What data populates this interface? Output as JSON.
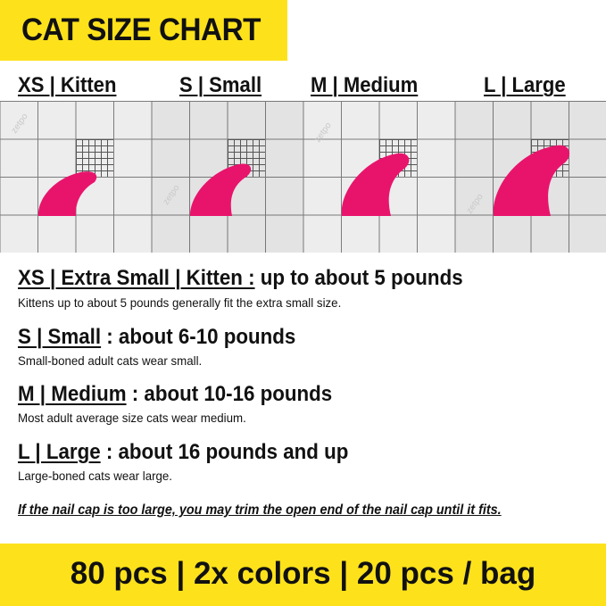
{
  "title": "CAT SIZE CHART",
  "size_labels": [
    "XS | Kitten",
    "S | Small",
    "M | Medium",
    "L | Large"
  ],
  "watermark": "zetpo",
  "cap_color": "#e8146c",
  "banner_color": "#fde21b",
  "sizes": [
    {
      "name": "XS | Extra Small | Kitten :",
      "range": " up to about 5 pounds",
      "description": "Kittens up to about 5 pounds generally fit the extra small size."
    },
    {
      "name": "S | Small",
      "range": " : about 6-10 pounds",
      "description": "Small-boned adult cats wear small."
    },
    {
      "name": "M | Medium",
      "range": " : about 10-16 pounds",
      "description": "Most adult average size cats wear medium."
    },
    {
      "name": "L | Large",
      "range": " : about 16 pounds and up",
      "description": "Large-boned cats wear large."
    }
  ],
  "note": "If the nail cap is too large, you may trim the open end of the nail cap until it fits.",
  "footer": "80 pcs | 2x colors | 20 pcs / bag"
}
